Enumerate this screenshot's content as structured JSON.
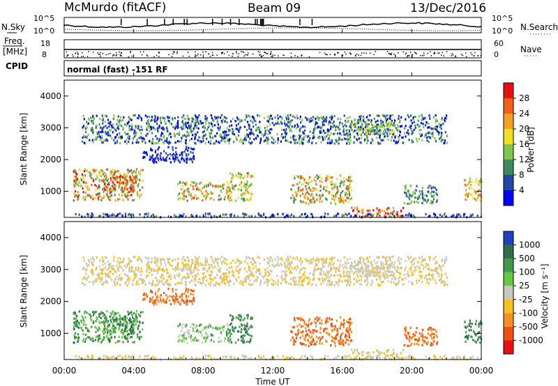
{
  "header": {
    "station": "McMurdo (fitACF)",
    "beam": "Beam 09",
    "date": "13/Dec/2016"
  },
  "panels": {
    "nsky_label": "N.Sky",
    "nsearch_label": "N.Search",
    "nsky_ticks": [
      "10^5",
      "10^0"
    ],
    "freq_label_line1": "Freq.",
    "freq_label_line2": "[MHz]",
    "freq_ticks": [
      "18",
      "8"
    ],
    "nave_label": "Nave",
    "nave_ticks": [
      "60",
      "0"
    ],
    "cpid_label": "CPID",
    "cpid_text": "normal (fast) -151 RF"
  },
  "chart_data": [
    {
      "type": "heatmap",
      "title": "",
      "xlabel": "",
      "ylabel": "Slant Range [km]",
      "xticks": [
        "00:00",
        "04:00",
        "08:00",
        "12:00",
        "16:00",
        "20:00",
        "00:00"
      ],
      "yticks": [
        "1000",
        "2000",
        "3000",
        "4000"
      ],
      "xlim_hours": [
        0,
        24
      ],
      "ylim_km": [
        180,
        4500
      ],
      "colorbar": {
        "label": "Power [dB]",
        "ticks": [
          "4",
          "8",
          "12",
          "16",
          "20",
          "24",
          "28"
        ],
        "colors": [
          "#0000ff",
          "#2148a8",
          "#3f8a5a",
          "#7ec850",
          "#f0e020",
          "#f5a020",
          "#f06018",
          "#e81010"
        ]
      }
    },
    {
      "type": "heatmap",
      "title": "",
      "xlabel": "Time UT",
      "ylabel": "Slant Range [km]",
      "xticks": [
        "00:00",
        "04:00",
        "08:00",
        "12:00",
        "16:00",
        "20:00",
        "00:00"
      ],
      "yticks": [
        "1000",
        "2000",
        "3000",
        "4000"
      ],
      "xlim_hours": [
        0,
        24
      ],
      "ylim_km": [
        180,
        4500
      ],
      "colorbar": {
        "label": "Velocity [m s⁻¹]",
        "ticks": [
          "1000",
          "500",
          "100",
          "25",
          "-25",
          "-100",
          "-500",
          "-1000"
        ],
        "colors": [
          "#2040c0",
          "#2e6e48",
          "#3f9a4a",
          "#66c840",
          "#c8c8c0",
          "#f8c020",
          "#f59020",
          "#f05010",
          "#e81010"
        ]
      }
    }
  ]
}
